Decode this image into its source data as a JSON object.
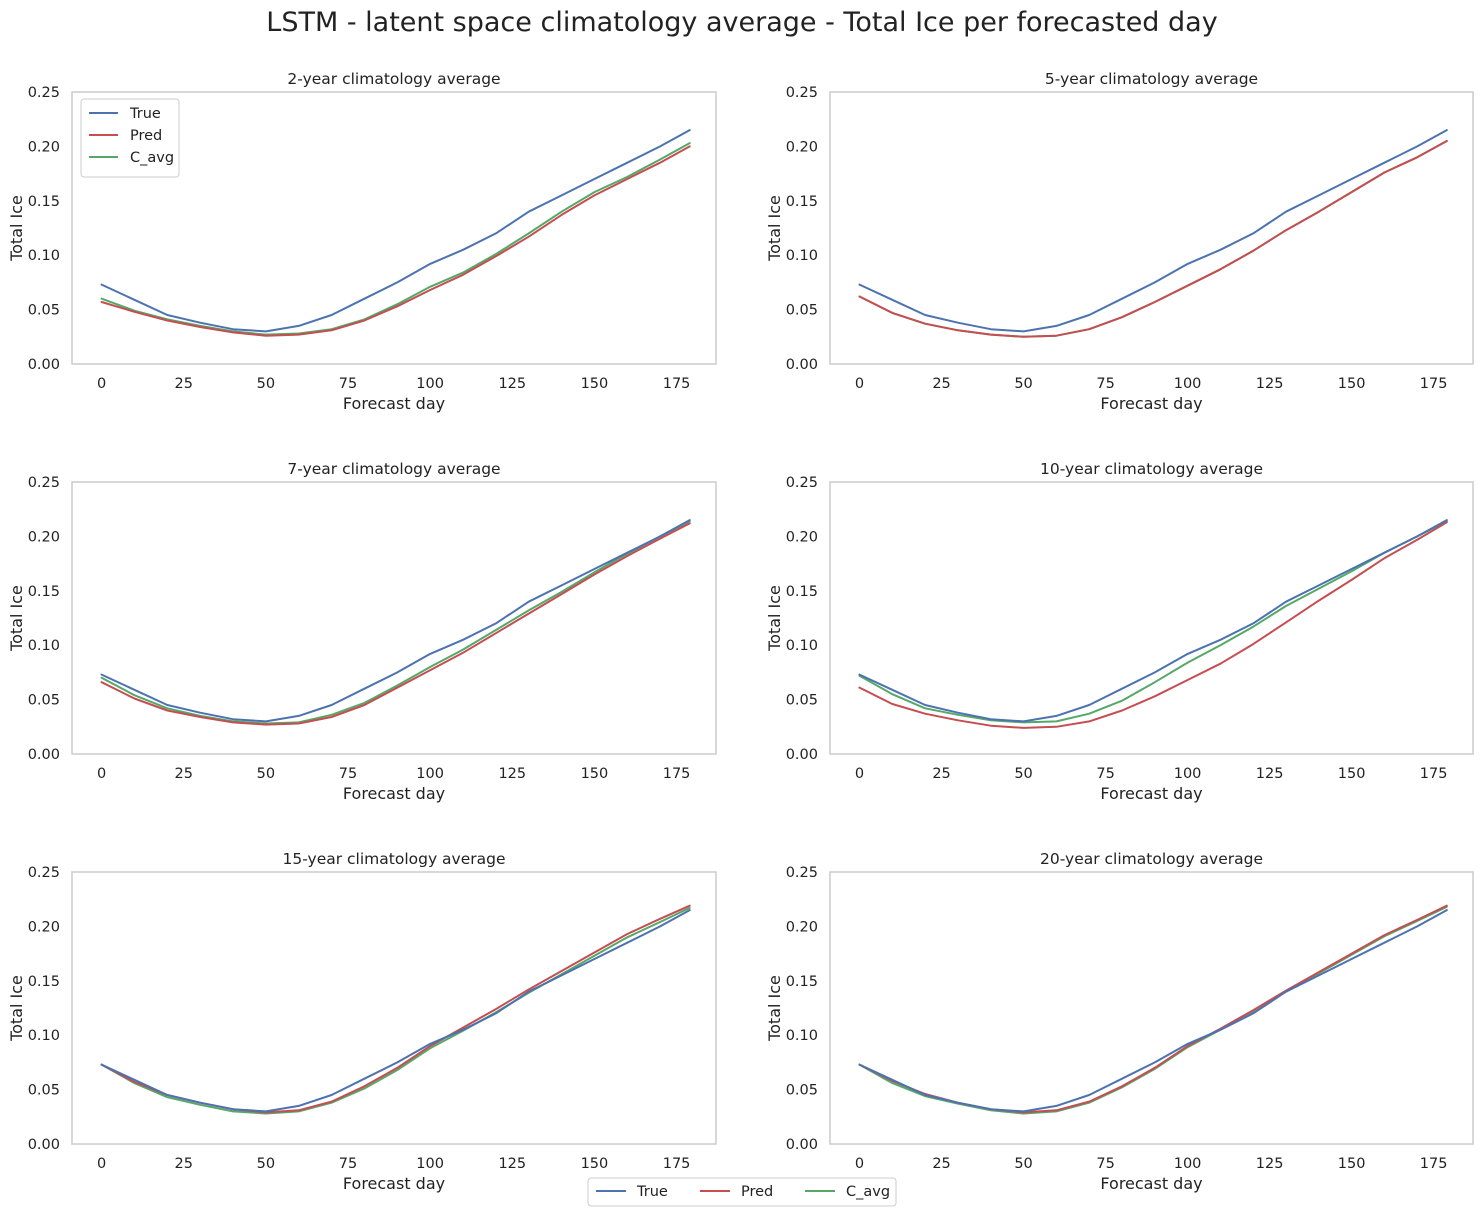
{
  "title": "LSTM - latent space climatology average - Total Ice per forecasted day",
  "colors": {
    "True": "#4c72b0",
    "Pred": "#c44e52",
    "C_avg": "#55a868",
    "frame": "#cccccc"
  },
  "legend_labels": [
    "True",
    "Pred",
    "C_avg"
  ],
  "chart_data": [
    {
      "type": "line",
      "title": "2-year climatology average",
      "xlabel": "Forecast day",
      "ylabel": "Total Ice",
      "xlim": [
        -9,
        187
      ],
      "ylim": [
        0,
        0.25
      ],
      "xticks": [
        "0",
        "25",
        "50",
        "75",
        "100",
        "125",
        "150",
        "175"
      ],
      "yticks": [
        "0.00",
        "0.05",
        "0.10",
        "0.15",
        "0.20",
        "0.25"
      ],
      "grid": false,
      "legend": "upper-left",
      "x": [
        0,
        10,
        20,
        30,
        40,
        50,
        60,
        70,
        80,
        90,
        100,
        110,
        120,
        130,
        140,
        150,
        160,
        170,
        179
      ],
      "series": [
        {
          "name": "True",
          "values": [
            0.073,
            0.059,
            0.045,
            0.038,
            0.032,
            0.03,
            0.035,
            0.045,
            0.06,
            0.075,
            0.092,
            0.105,
            0.12,
            0.14,
            0.155,
            0.17,
            0.185,
            0.2,
            0.215
          ]
        },
        {
          "name": "Pred",
          "values": [
            0.057,
            0.048,
            0.04,
            0.034,
            0.029,
            0.026,
            0.027,
            0.031,
            0.04,
            0.053,
            0.068,
            0.082,
            0.099,
            0.117,
            0.137,
            0.155,
            0.17,
            0.185,
            0.2
          ]
        },
        {
          "name": "C_avg",
          "values": [
            0.06,
            0.049,
            0.041,
            0.035,
            0.03,
            0.027,
            0.028,
            0.032,
            0.041,
            0.055,
            0.071,
            0.084,
            0.101,
            0.12,
            0.14,
            0.158,
            0.172,
            0.188,
            0.203
          ]
        }
      ]
    },
    {
      "type": "line",
      "title": "5-year climatology average",
      "xlabel": "Forecast day",
      "ylabel": "Total Ice",
      "xlim": [
        -9,
        187
      ],
      "ylim": [
        0,
        0.25
      ],
      "xticks": [
        "0",
        "25",
        "50",
        "75",
        "100",
        "125",
        "150",
        "175"
      ],
      "yticks": [
        "0.00",
        "0.05",
        "0.10",
        "0.15",
        "0.20",
        "0.25"
      ],
      "grid": false,
      "x": [
        0,
        10,
        20,
        30,
        40,
        50,
        60,
        70,
        80,
        90,
        100,
        110,
        120,
        130,
        140,
        150,
        160,
        170,
        179
      ],
      "series": [
        {
          "name": "True",
          "values": [
            0.073,
            0.059,
            0.045,
            0.038,
            0.032,
            0.03,
            0.035,
            0.045,
            0.06,
            0.075,
            0.092,
            0.105,
            0.12,
            0.14,
            0.155,
            0.17,
            0.185,
            0.2,
            0.215
          ]
        },
        {
          "name": "Pred",
          "values": [
            0.062,
            0.047,
            0.037,
            0.031,
            0.027,
            0.025,
            0.026,
            0.032,
            0.043,
            0.057,
            0.072,
            0.087,
            0.104,
            0.123,
            0.14,
            0.158,
            0.176,
            0.19,
            0.205
          ]
        },
        {
          "name": "C_avg",
          "values": [
            0.062,
            0.047,
            0.037,
            0.031,
            0.027,
            0.025,
            0.026,
            0.032,
            0.043,
            0.057,
            0.072,
            0.087,
            0.104,
            0.123,
            0.14,
            0.158,
            0.176,
            0.19,
            0.205
          ]
        }
      ]
    },
    {
      "type": "line",
      "title": "7-year climatology average",
      "xlabel": "Forecast day",
      "ylabel": "Total Ice",
      "xlim": [
        -9,
        187
      ],
      "ylim": [
        0,
        0.25
      ],
      "xticks": [
        "0",
        "25",
        "50",
        "75",
        "100",
        "125",
        "150",
        "175"
      ],
      "yticks": [
        "0.00",
        "0.05",
        "0.10",
        "0.15",
        "0.20",
        "0.25"
      ],
      "grid": false,
      "x": [
        0,
        10,
        20,
        30,
        40,
        50,
        60,
        70,
        80,
        90,
        100,
        110,
        120,
        130,
        140,
        150,
        160,
        170,
        179
      ],
      "series": [
        {
          "name": "True",
          "values": [
            0.073,
            0.059,
            0.045,
            0.038,
            0.032,
            0.03,
            0.035,
            0.045,
            0.06,
            0.075,
            0.092,
            0.105,
            0.12,
            0.14,
            0.155,
            0.17,
            0.185,
            0.2,
            0.215
          ]
        },
        {
          "name": "Pred",
          "values": [
            0.066,
            0.051,
            0.04,
            0.034,
            0.029,
            0.027,
            0.028,
            0.034,
            0.045,
            0.061,
            0.077,
            0.093,
            0.111,
            0.129,
            0.147,
            0.165,
            0.182,
            0.198,
            0.212
          ]
        },
        {
          "name": "C_avg",
          "values": [
            0.07,
            0.054,
            0.042,
            0.035,
            0.03,
            0.028,
            0.029,
            0.036,
            0.047,
            0.063,
            0.08,
            0.096,
            0.114,
            0.132,
            0.149,
            0.167,
            0.184,
            0.2,
            0.214
          ]
        }
      ]
    },
    {
      "type": "line",
      "title": "10-year climatology average",
      "xlabel": "Forecast day",
      "ylabel": "Total Ice",
      "xlim": [
        -9,
        187
      ],
      "ylim": [
        0,
        0.25
      ],
      "xticks": [
        "0",
        "25",
        "50",
        "75",
        "100",
        "125",
        "150",
        "175"
      ],
      "yticks": [
        "0.00",
        "0.05",
        "0.10",
        "0.15",
        "0.20",
        "0.25"
      ],
      "grid": false,
      "x": [
        0,
        10,
        20,
        30,
        40,
        50,
        60,
        70,
        80,
        90,
        100,
        110,
        120,
        130,
        140,
        150,
        160,
        170,
        179
      ],
      "series": [
        {
          "name": "True",
          "values": [
            0.073,
            0.059,
            0.045,
            0.038,
            0.032,
            0.03,
            0.035,
            0.045,
            0.06,
            0.075,
            0.092,
            0.105,
            0.12,
            0.14,
            0.155,
            0.17,
            0.185,
            0.2,
            0.215
          ]
        },
        {
          "name": "Pred",
          "values": [
            0.061,
            0.046,
            0.037,
            0.031,
            0.026,
            0.024,
            0.025,
            0.03,
            0.04,
            0.053,
            0.068,
            0.083,
            0.101,
            0.121,
            0.141,
            0.16,
            0.18,
            0.197,
            0.213
          ]
        },
        {
          "name": "C_avg",
          "values": [
            0.072,
            0.055,
            0.042,
            0.036,
            0.031,
            0.029,
            0.03,
            0.037,
            0.049,
            0.066,
            0.084,
            0.1,
            0.117,
            0.136,
            0.152,
            0.168,
            0.185,
            0.2,
            0.214
          ]
        }
      ]
    },
    {
      "type": "line",
      "title": "15-year climatology average",
      "xlabel": "Forecast day",
      "ylabel": "Total Ice",
      "xlim": [
        -9,
        187
      ],
      "ylim": [
        0,
        0.25
      ],
      "xticks": [
        "0",
        "25",
        "50",
        "75",
        "100",
        "125",
        "150",
        "175"
      ],
      "yticks": [
        "0.00",
        "0.05",
        "0.10",
        "0.15",
        "0.20",
        "0.25"
      ],
      "grid": false,
      "x": [
        0,
        10,
        20,
        30,
        40,
        50,
        60,
        70,
        80,
        90,
        100,
        110,
        120,
        130,
        140,
        150,
        160,
        170,
        179
      ],
      "series": [
        {
          "name": "True",
          "values": [
            0.073,
            0.059,
            0.045,
            0.038,
            0.032,
            0.03,
            0.035,
            0.045,
            0.06,
            0.075,
            0.092,
            0.105,
            0.12,
            0.14,
            0.155,
            0.17,
            0.185,
            0.2,
            0.215
          ]
        },
        {
          "name": "Pred",
          "values": [
            0.073,
            0.057,
            0.045,
            0.038,
            0.032,
            0.029,
            0.031,
            0.039,
            0.053,
            0.07,
            0.09,
            0.107,
            0.124,
            0.142,
            0.159,
            0.176,
            0.193,
            0.207,
            0.219
          ]
        },
        {
          "name": "C_avg",
          "values": [
            0.073,
            0.056,
            0.043,
            0.036,
            0.03,
            0.028,
            0.03,
            0.038,
            0.051,
            0.068,
            0.088,
            0.104,
            0.121,
            0.139,
            0.156,
            0.173,
            0.19,
            0.204,
            0.217
          ]
        }
      ]
    },
    {
      "type": "line",
      "title": "20-year climatology average",
      "xlabel": "Forecast day",
      "ylabel": "Total Ice",
      "xlim": [
        -9,
        187
      ],
      "ylim": [
        0,
        0.25
      ],
      "xticks": [
        "0",
        "25",
        "50",
        "75",
        "100",
        "125",
        "150",
        "175"
      ],
      "yticks": [
        "0.00",
        "0.05",
        "0.10",
        "0.15",
        "0.20",
        "0.25"
      ],
      "grid": false,
      "x": [
        0,
        10,
        20,
        30,
        40,
        50,
        60,
        70,
        80,
        90,
        100,
        110,
        120,
        130,
        140,
        150,
        160,
        170,
        179
      ],
      "series": [
        {
          "name": "True",
          "values": [
            0.073,
            0.059,
            0.045,
            0.038,
            0.032,
            0.03,
            0.035,
            0.045,
            0.06,
            0.075,
            0.092,
            0.105,
            0.12,
            0.14,
            0.155,
            0.17,
            0.185,
            0.2,
            0.215
          ]
        },
        {
          "name": "Pred",
          "values": [
            0.073,
            0.058,
            0.046,
            0.038,
            0.032,
            0.029,
            0.031,
            0.039,
            0.053,
            0.07,
            0.09,
            0.106,
            0.123,
            0.141,
            0.158,
            0.175,
            0.192,
            0.206,
            0.219
          ]
        },
        {
          "name": "C_avg",
          "values": [
            0.073,
            0.056,
            0.044,
            0.037,
            0.031,
            0.028,
            0.03,
            0.038,
            0.052,
            0.069,
            0.089,
            0.105,
            0.122,
            0.14,
            0.157,
            0.174,
            0.191,
            0.205,
            0.218
          ]
        }
      ]
    }
  ]
}
